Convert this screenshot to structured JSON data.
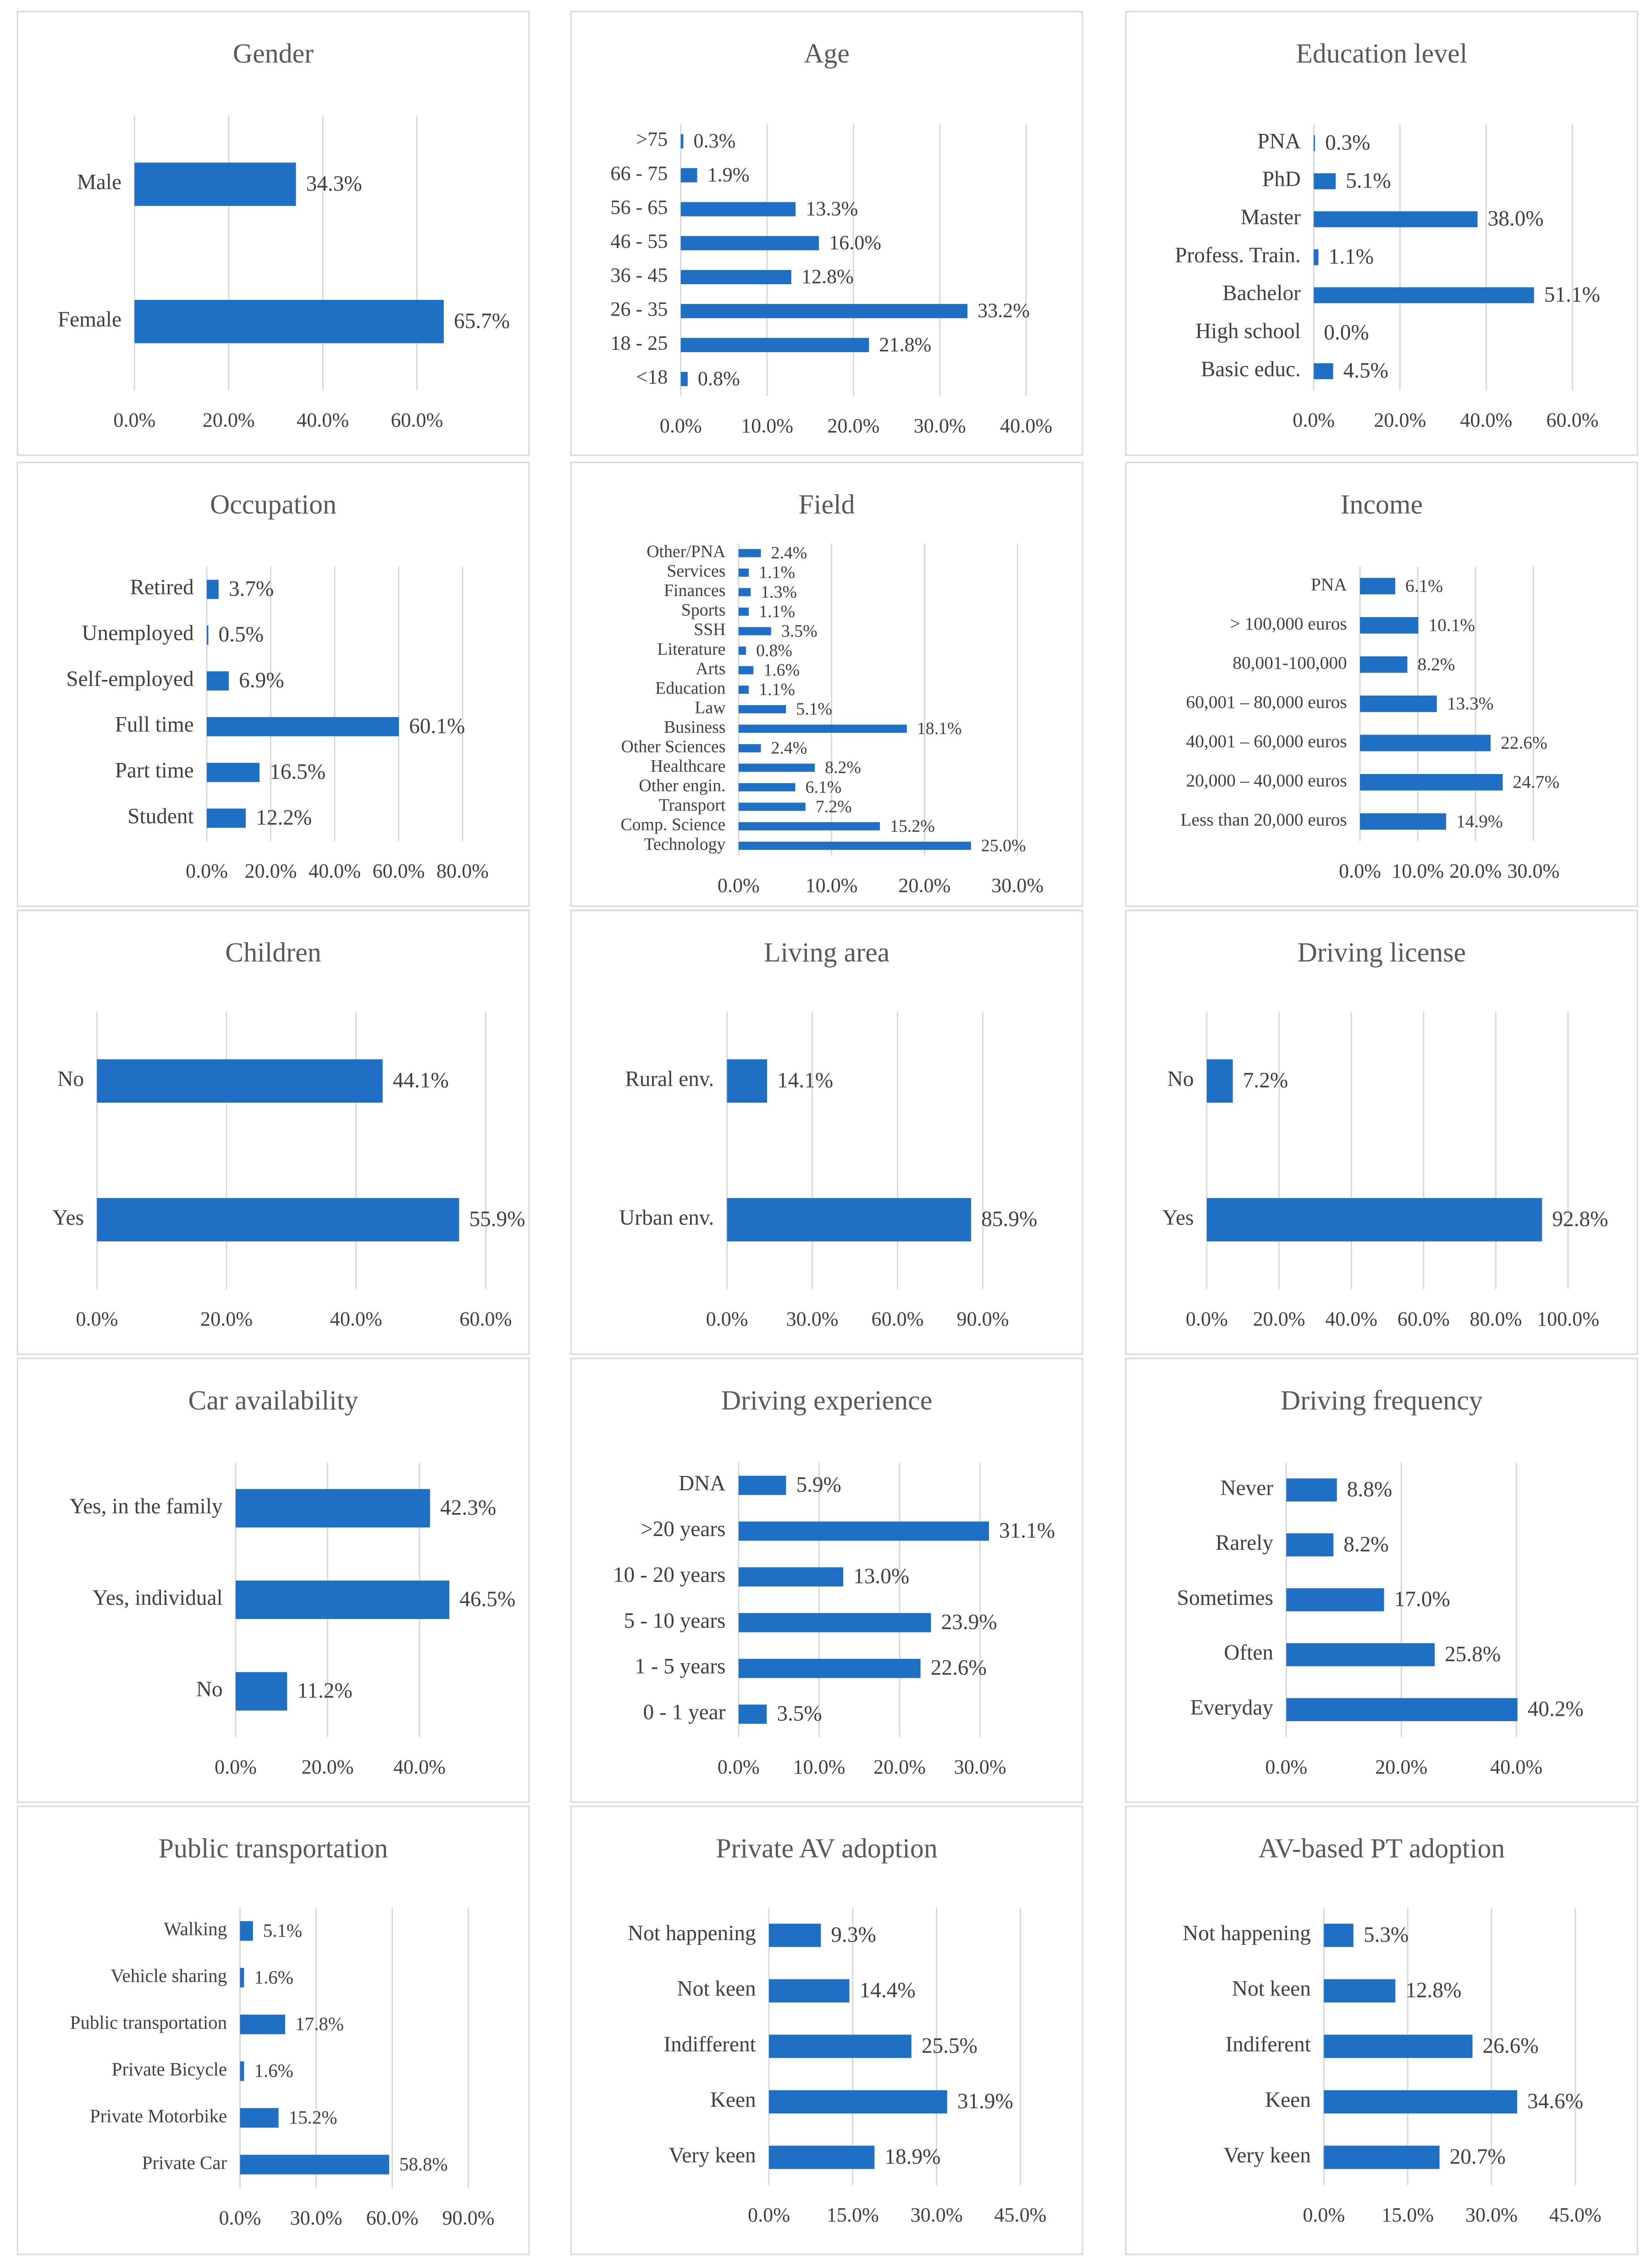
{
  "chart_data": [
    {
      "type": "bar",
      "title": "Gender",
      "color": "#1f6fc5",
      "grid": true,
      "categories": [
        "Male",
        "Female"
      ],
      "values": [
        34.3,
        65.7
      ],
      "value_labels": [
        "34.3%",
        "65.7%"
      ],
      "xlim": [
        0,
        70
      ],
      "xticks": [
        {
          "value": 0,
          "label": "0.0%"
        },
        {
          "value": 20,
          "label": "20.0%"
        },
        {
          "value": 40,
          "label": "40.0%"
        },
        {
          "value": 60,
          "label": "60.0%"
        }
      ]
    },
    {
      "type": "bar",
      "title": "Age",
      "color": "#1f6fc5",
      "grid": true,
      "categories": [
        ">75",
        "66 - 75",
        "56 - 65",
        "46 - 55",
        "36 - 45",
        "26 - 35",
        "18 - 25",
        "<18"
      ],
      "values": [
        0.3,
        1.9,
        13.3,
        16.0,
        12.8,
        33.2,
        21.8,
        0.8
      ],
      "value_labels": [
        "0.3%",
        "1.9%",
        "13.3%",
        "16.0%",
        "12.8%",
        "33.2%",
        "21.8%",
        "0.8%"
      ],
      "xlim": [
        0,
        40
      ],
      "xticks": [
        {
          "value": 0,
          "label": "0.0%"
        },
        {
          "value": 10,
          "label": "10.0%"
        },
        {
          "value": 20,
          "label": "20.0%"
        },
        {
          "value": 30,
          "label": "30.0%"
        },
        {
          "value": 40,
          "label": "40.0%"
        }
      ]
    },
    {
      "type": "bar",
      "title": "Education level",
      "color": "#1f6fc5",
      "grid": true,
      "categories": [
        "PNA",
        "PhD",
        "Master",
        "Profess. Train.",
        "Bachelor",
        "High school",
        "Basic educ."
      ],
      "values": [
        0.3,
        5.1,
        38.0,
        1.1,
        51.1,
        0.0,
        4.5
      ],
      "value_labels": [
        "0.3%",
        "5.1%",
        "38.0%",
        "1.1%",
        "51.1%",
        "0.0%",
        "4.5%"
      ],
      "xlim": [
        0,
        60
      ],
      "xticks": [
        {
          "value": 0,
          "label": "0.0%"
        },
        {
          "value": 20,
          "label": "20.0%"
        },
        {
          "value": 40,
          "label": "40.0%"
        },
        {
          "value": 60,
          "label": "60.0%"
        }
      ]
    },
    {
      "type": "bar",
      "title": "Occupation",
      "color": "#1f6fc5",
      "grid": true,
      "categories": [
        "Retired",
        "Unemployed",
        "Self-employed",
        "Full time",
        "Part time",
        "Student"
      ],
      "values": [
        3.7,
        0.5,
        6.9,
        60.1,
        16.5,
        12.2
      ],
      "value_labels": [
        "3.7%",
        "0.5%",
        "6.9%",
        "60.1%",
        "16.5%",
        "12.2%"
      ],
      "xlim": [
        0,
        80
      ],
      "xticks": [
        {
          "value": 0,
          "label": "0.0%"
        },
        {
          "value": 20,
          "label": "20.0%"
        },
        {
          "value": 40,
          "label": "40.0%"
        },
        {
          "value": 60,
          "label": "60.0%"
        },
        {
          "value": 80,
          "label": "80.0%"
        }
      ]
    },
    {
      "type": "bar",
      "title": "Field",
      "color": "#1f6fc5",
      "grid": true,
      "categories": [
        "Other/PNA",
        "Services",
        "Finances",
        "Sports",
        "SSH",
        "Literature",
        "Arts",
        "Education",
        "Law",
        "Business",
        "Other Sciences",
        "Healthcare",
        "Other engin.",
        "Transport",
        "Comp. Science",
        "Technology"
      ],
      "values": [
        2.4,
        1.1,
        1.3,
        1.1,
        3.5,
        0.8,
        1.6,
        1.1,
        5.1,
        18.1,
        2.4,
        8.2,
        6.1,
        7.2,
        15.2,
        25.0
      ],
      "value_labels": [
        "2.4%",
        "1.1%",
        "1.3%",
        "1.1%",
        "3.5%",
        "0.8%",
        "1.6%",
        "1.1%",
        "5.1%",
        "18.1%",
        "2.4%",
        "8.2%",
        "6.1%",
        "7.2%",
        "15.2%",
        "25.0%"
      ],
      "xlim": [
        0,
        30
      ],
      "xticks": [
        {
          "value": 0,
          "label": "0.0%"
        },
        {
          "value": 10,
          "label": "10.0%"
        },
        {
          "value": 20,
          "label": "20.0%"
        },
        {
          "value": 30,
          "label": "30.0%"
        }
      ]
    },
    {
      "type": "bar",
      "title": "Income",
      "color": "#1f6fc5",
      "grid": true,
      "categories": [
        "PNA",
        "> 100,000 euros",
        "80,001-100,000",
        "60,001 – 80,000 euros",
        "40,001 – 60,000 euros",
        "20,000 – 40,000 euros",
        "Less than 20,000 euros"
      ],
      "values": [
        6.1,
        10.1,
        8.2,
        13.3,
        22.6,
        24.7,
        14.9
      ],
      "value_labels": [
        "6.1%",
        "10.1%",
        "8.2%",
        "13.3%",
        "22.6%",
        "24.7%",
        "14.9%"
      ],
      "xlim": [
        0,
        30
      ],
      "xticks": [
        {
          "value": 0,
          "label": "0.0%"
        },
        {
          "value": 10,
          "label": "10.0%"
        },
        {
          "value": 20,
          "label": "20.0%"
        },
        {
          "value": 30,
          "label": "30.0%"
        }
      ]
    },
    {
      "type": "bar",
      "title": "Children",
      "color": "#1f6fc5",
      "grid": true,
      "categories": [
        "No",
        "Yes"
      ],
      "values": [
        44.1,
        55.9
      ],
      "value_labels": [
        "44.1%",
        "55.9%"
      ],
      "xlim": [
        0,
        60
      ],
      "xticks": [
        {
          "value": 0,
          "label": "0.0%"
        },
        {
          "value": 20,
          "label": "20.0%"
        },
        {
          "value": 40,
          "label": "40.0%"
        },
        {
          "value": 60,
          "label": "60.0%"
        }
      ]
    },
    {
      "type": "bar",
      "title": "Living area",
      "color": "#1f6fc5",
      "grid": true,
      "categories": [
        "Rural env.",
        "Urban env."
      ],
      "values": [
        14.1,
        85.9
      ],
      "value_labels": [
        "14.1%",
        "85.9%"
      ],
      "xlim": [
        0,
        90
      ],
      "xticks": [
        {
          "value": 0,
          "label": "0.0%"
        },
        {
          "value": 30,
          "label": "30.0%"
        },
        {
          "value": 60,
          "label": "60.0%"
        },
        {
          "value": 90,
          "label": "90.0%"
        }
      ]
    },
    {
      "type": "bar",
      "title": "Driving license",
      "color": "#1f6fc5",
      "grid": true,
      "categories": [
        "No",
        "Yes"
      ],
      "values": [
        7.2,
        92.8
      ],
      "value_labels": [
        "7.2%",
        "92.8%"
      ],
      "xlim": [
        0,
        100
      ],
      "xticks": [
        {
          "value": 0,
          "label": "0.0%"
        },
        {
          "value": 20,
          "label": "20.0%"
        },
        {
          "value": 40,
          "label": "40.0%"
        },
        {
          "value": 60,
          "label": "60.0%"
        },
        {
          "value": 80,
          "label": "80.0%"
        },
        {
          "value": 100,
          "label": "100.0%"
        }
      ]
    },
    {
      "type": "bar",
      "title": "Car availability",
      "color": "#1f6fc5",
      "grid": true,
      "categories": [
        "Yes, in the family",
        "Yes, individual",
        "No"
      ],
      "values": [
        42.3,
        46.5,
        11.2
      ],
      "value_labels": [
        "42.3%",
        "46.5%",
        "11.2%"
      ],
      "xlim": [
        0,
        50
      ],
      "xticks": [
        {
          "value": 0,
          "label": "0.0%"
        },
        {
          "value": 20,
          "label": "20.0%"
        },
        {
          "value": 40,
          "label": "40.0%"
        }
      ]
    },
    {
      "type": "bar",
      "title": "Driving experience",
      "color": "#1f6fc5",
      "grid": true,
      "categories": [
        "DNA",
        ">20 years",
        "10 - 20 years",
        "5 - 10 years",
        "1 - 5 years",
        "0 - 1 year"
      ],
      "values": [
        5.9,
        31.1,
        13.0,
        23.9,
        22.6,
        3.5
      ],
      "value_labels": [
        "5.9%",
        "31.1%",
        "13.0%",
        "23.9%",
        "22.6%",
        "3.5%"
      ],
      "xlim": [
        0,
        35
      ],
      "xticks": [
        {
          "value": 0,
          "label": "0.0%"
        },
        {
          "value": 10,
          "label": "10.0%"
        },
        {
          "value": 20,
          "label": "20.0%"
        },
        {
          "value": 30,
          "label": "30.0%"
        }
      ]
    },
    {
      "type": "bar",
      "title": "Driving frequency",
      "color": "#1f6fc5",
      "grid": true,
      "categories": [
        "Never",
        "Rarely",
        "Sometimes",
        "Often",
        "Everyday"
      ],
      "values": [
        8.8,
        8.2,
        17.0,
        25.8,
        40.2
      ],
      "value_labels": [
        "8.8%",
        "8.2%",
        "17.0%",
        "25.8%",
        "40.2%"
      ],
      "xlim": [
        0,
        50
      ],
      "xticks": [
        {
          "value": 0,
          "label": "0.0%"
        },
        {
          "value": 20,
          "label": "20.0%"
        },
        {
          "value": 40,
          "label": "40.0%"
        }
      ]
    },
    {
      "type": "bar",
      "title": "Public transportation",
      "color": "#1f6fc5",
      "grid": true,
      "categories": [
        "Walking",
        "Vehicle sharing",
        "Public transportation",
        "Private Bicycle",
        "Private Motorbike",
        "Private Car"
      ],
      "values": [
        5.1,
        1.6,
        17.8,
        1.6,
        15.2,
        58.8
      ],
      "value_labels": [
        "5.1%",
        "1.6%",
        "17.8%",
        "1.6%",
        "15.2%",
        "58.8%"
      ],
      "xlim": [
        0,
        90
      ],
      "xticks": [
        {
          "value": 0,
          "label": "0.0%"
        },
        {
          "value": 30,
          "label": "30.0%"
        },
        {
          "value": 60,
          "label": "60.0%"
        },
        {
          "value": 90,
          "label": "90.0%"
        }
      ]
    },
    {
      "type": "bar",
      "title": "Private AV adoption",
      "color": "#1f6fc5",
      "grid": true,
      "categories": [
        "Not happening",
        "Not keen",
        "Indifferent",
        "Keen",
        "Very keen"
      ],
      "values": [
        9.3,
        14.4,
        25.5,
        31.9,
        18.9
      ],
      "value_labels": [
        "9.3%",
        "14.4%",
        "25.5%",
        "31.9%",
        "18.9%"
      ],
      "xlim": [
        0,
        45
      ],
      "xticks": [
        {
          "value": 0,
          "label": "0.0%"
        },
        {
          "value": 15,
          "label": "15.0%"
        },
        {
          "value": 30,
          "label": "30.0%"
        },
        {
          "value": 45,
          "label": "45.0%"
        }
      ]
    },
    {
      "type": "bar",
      "title": "AV-based PT adoption",
      "color": "#1f6fc5",
      "grid": true,
      "categories": [
        "Not happening",
        "Not keen",
        "Indiferent",
        "Keen",
        "Very keen"
      ],
      "values": [
        5.3,
        12.8,
        26.6,
        34.6,
        20.7
      ],
      "value_labels": [
        "5.3%",
        "12.8%",
        "26.6%",
        "34.6%",
        "20.7%"
      ],
      "xlim": [
        0,
        45
      ],
      "xticks": [
        {
          "value": 0,
          "label": "0.0%"
        },
        {
          "value": 15,
          "label": "15.0%"
        },
        {
          "value": 30,
          "label": "30.0%"
        },
        {
          "value": 45,
          "label": "45.0%"
        }
      ]
    }
  ]
}
